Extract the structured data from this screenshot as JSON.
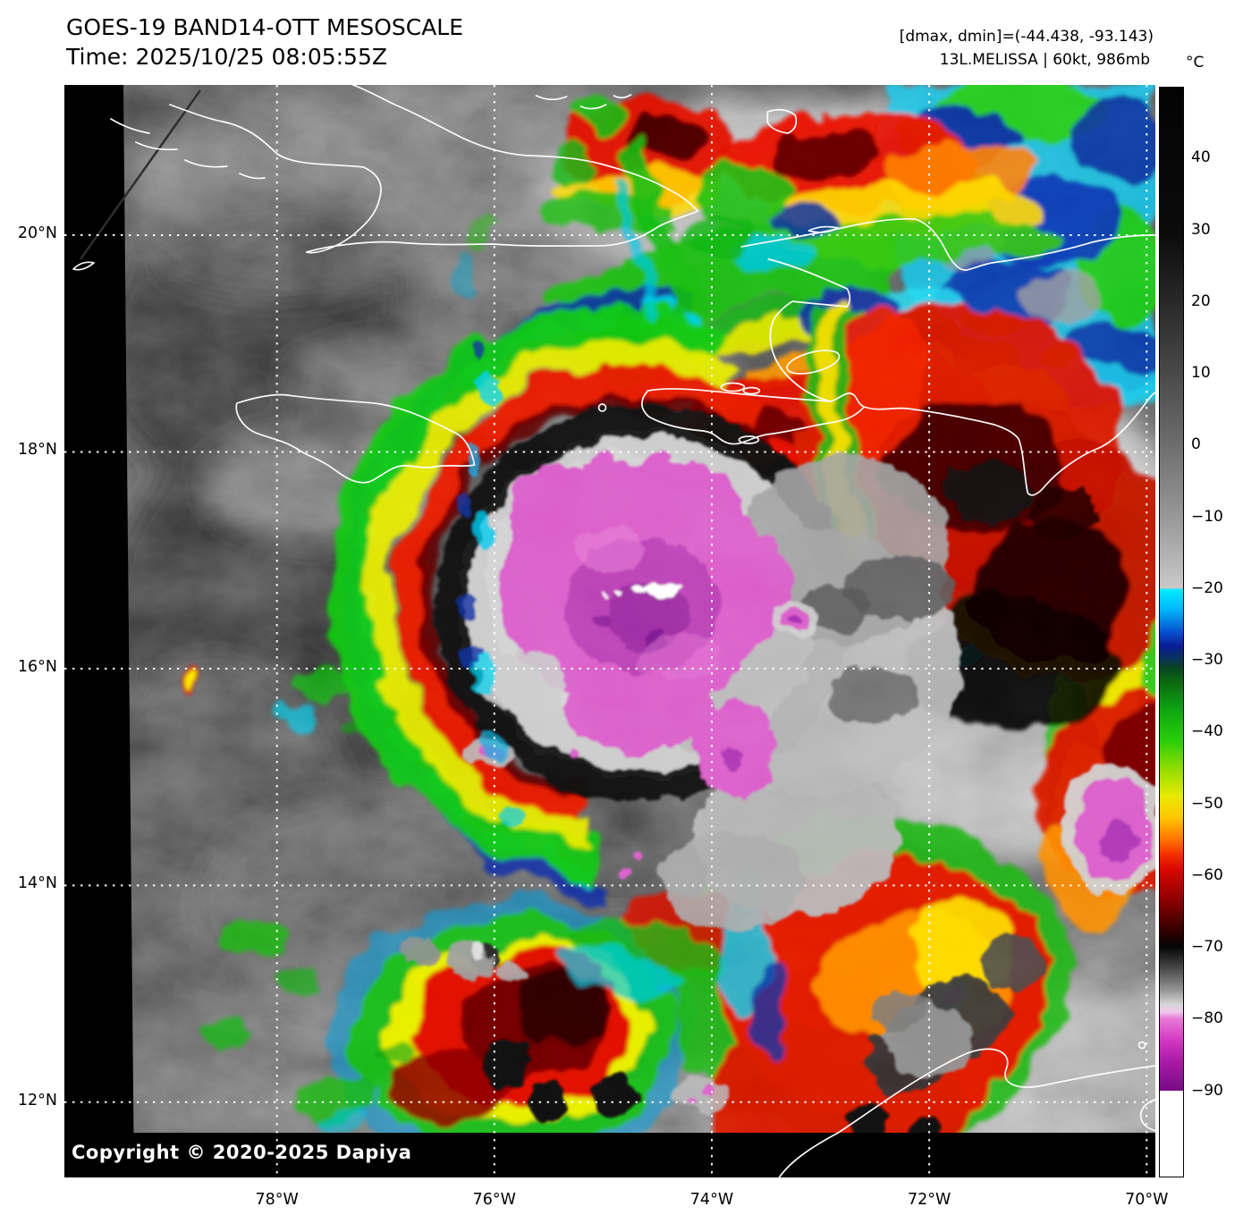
{
  "header": {
    "title": "GOES-19 BAND14-OTT MESOSCALE",
    "time_line": "Time: 2025/10/25 08:05:55Z",
    "dmax_dmin": "[dmax, dmin]=(-44.438, -93.143)",
    "storm_info": "13L.MELISSA | 60kt, 986mb"
  },
  "colorbar": {
    "unit": "°C",
    "vmax": 50,
    "vmin": -102,
    "ticks": [
      {
        "v": 40,
        "label": "40"
      },
      {
        "v": 30,
        "label": "30"
      },
      {
        "v": 20,
        "label": "20"
      },
      {
        "v": 10,
        "label": "10"
      },
      {
        "v": 0,
        "label": "0"
      },
      {
        "v": -10,
        "label": "−10"
      },
      {
        "v": -20,
        "label": "−20"
      },
      {
        "v": -30,
        "label": "−30"
      },
      {
        "v": -40,
        "label": "−40"
      },
      {
        "v": -50,
        "label": "−50"
      },
      {
        "v": -60,
        "label": "−60"
      },
      {
        "v": -70,
        "label": "−70"
      },
      {
        "v": -80,
        "label": "−80"
      },
      {
        "v": -90,
        "label": "−90"
      }
    ],
    "stops": [
      [
        0.0,
        "#030303"
      ],
      [
        0.132,
        "#0b0b0b"
      ],
      [
        0.2,
        "#2a2a2a"
      ],
      [
        0.264,
        "#4a4a4a"
      ],
      [
        0.329,
        "#6e6e6e"
      ],
      [
        0.395,
        "#989898"
      ],
      [
        0.4599,
        "#c9c9c9"
      ],
      [
        0.4605,
        "#00eeff"
      ],
      [
        0.48,
        "#00b4f8"
      ],
      [
        0.5,
        "#0850d0"
      ],
      [
        0.513,
        "#0a1c94"
      ],
      [
        0.5235,
        "#0a3060"
      ],
      [
        0.5329,
        "#0a4420"
      ],
      [
        0.546,
        "#0b6a10"
      ],
      [
        0.572,
        "#0fa612"
      ],
      [
        0.599,
        "#28cc0a"
      ],
      [
        0.625,
        "#90dc00"
      ],
      [
        0.651,
        "#e8ea00"
      ],
      [
        0.671,
        "#ffc400"
      ],
      [
        0.691,
        "#ff7200"
      ],
      [
        0.704,
        "#f53000"
      ],
      [
        0.717,
        "#dc0800"
      ],
      [
        0.743,
        "#960000"
      ],
      [
        0.77,
        "#400000"
      ],
      [
        0.789,
        "#050505"
      ],
      [
        0.809,
        "#4a4a4a"
      ],
      [
        0.829,
        "#969696"
      ],
      [
        0.842,
        "#d6d6d6"
      ],
      [
        0.8487,
        "#f0c8ec"
      ],
      [
        0.855,
        "#e87ad6"
      ],
      [
        0.875,
        "#d238c2"
      ],
      [
        0.895,
        "#a81aa8"
      ],
      [
        0.914,
        "#841090"
      ],
      [
        0.9209,
        "#7a0a86"
      ],
      [
        0.9215,
        "#ffffff"
      ],
      [
        1.0,
        "#ffffff"
      ]
    ]
  },
  "axes": {
    "extent": {
      "west": -79.955,
      "east": -69.92,
      "north": 21.386,
      "south": 11.305
    },
    "grid_color": "#ffffff",
    "lat_ticks": [
      {
        "v": 20,
        "label": "20°N"
      },
      {
        "v": 18,
        "label": "18°N"
      },
      {
        "v": 16,
        "label": "16°N"
      },
      {
        "v": 14,
        "label": "14°N"
      },
      {
        "v": 12,
        "label": "12°N"
      }
    ],
    "lon_ticks": [
      {
        "v": -78,
        "label": "78°W"
      },
      {
        "v": -76,
        "label": "76°W"
      },
      {
        "v": -74,
        "label": "74°W"
      },
      {
        "v": -72,
        "label": "72°W"
      },
      {
        "v": -70,
        "label": "70°W"
      }
    ]
  },
  "map": {
    "copyright": "Copyright © 2020-2025 Dapiya",
    "visible_features": [
      "Cuba",
      "Jamaica",
      "Hispaniola",
      "Gonâve",
      "Tortuga",
      "Great Inagua",
      "Cayman Brac",
      "Navassa",
      "Cayemites",
      "South America coast",
      "Aruba"
    ]
  }
}
